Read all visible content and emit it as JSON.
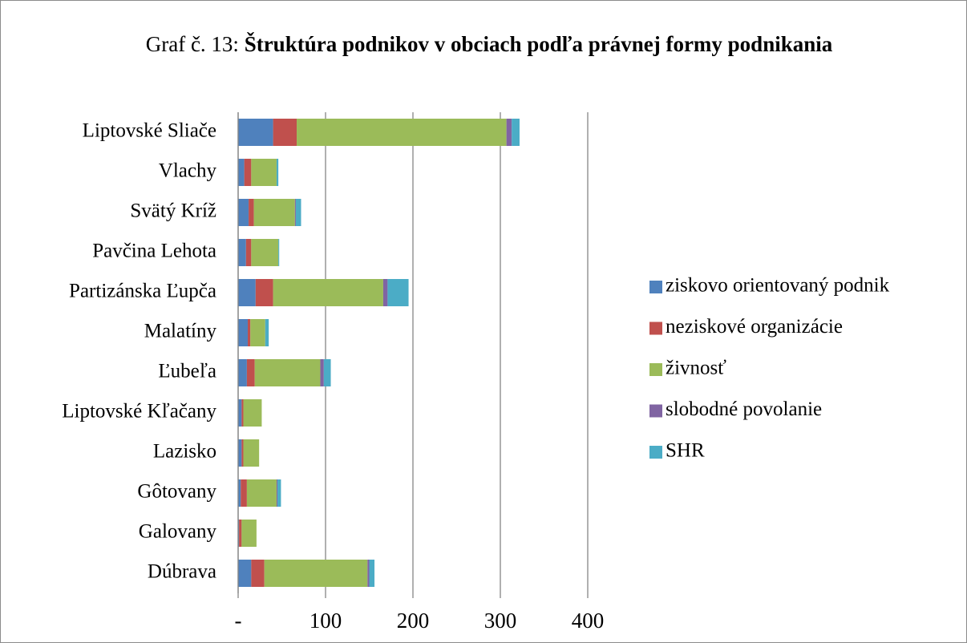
{
  "chart_data": {
    "type": "stacked_barh",
    "title": {
      "prefix": "Graf č. 13:",
      "main": "Štruktúra podnikov v obciach podľa právnej formy podnikania"
    },
    "categories": [
      "Liptovské Sliače",
      "Vlachy",
      "Svätý Kríž",
      "Pavčina Lehota",
      "Partizánska Ľupča",
      "Malatíny",
      "Ľubeľa",
      "Liptovské Kľačany",
      "Lazisko",
      "Gôtovany",
      "Galovany",
      "Dúbrava"
    ],
    "series": [
      {
        "name": "ziskovo orientovaný podnik",
        "color": "#4f81bd",
        "values": [
          40,
          7,
          12,
          9,
          20,
          11,
          10,
          4,
          4,
          3,
          1,
          15
        ]
      },
      {
        "name": "neziskové organizácie",
        "color": "#c0504d",
        "values": [
          27,
          8,
          6,
          6,
          20,
          3,
          9,
          2,
          2,
          7,
          3,
          15
        ]
      },
      {
        "name": "živnosť",
        "color": "#9bbb59",
        "values": [
          240,
          29,
          47,
          31,
          126,
          17,
          75,
          21,
          18,
          34,
          17,
          118
        ]
      },
      {
        "name": "slobodné povolanie",
        "color": "#8064a2",
        "values": [
          6,
          0,
          1,
          0,
          5,
          0,
          4,
          0,
          0,
          1,
          0,
          2
        ]
      },
      {
        "name": "SHR",
        "color": "#4bacc6",
        "values": [
          9,
          2,
          6,
          1,
          24,
          4,
          8,
          0,
          0,
          4,
          0,
          6
        ]
      }
    ],
    "xlim": [
      0,
      400
    ],
    "xticks": [
      {
        "value": 0,
        "label": "-"
      },
      100,
      200,
      300,
      400
    ],
    "grid": true,
    "legend": "right"
  }
}
